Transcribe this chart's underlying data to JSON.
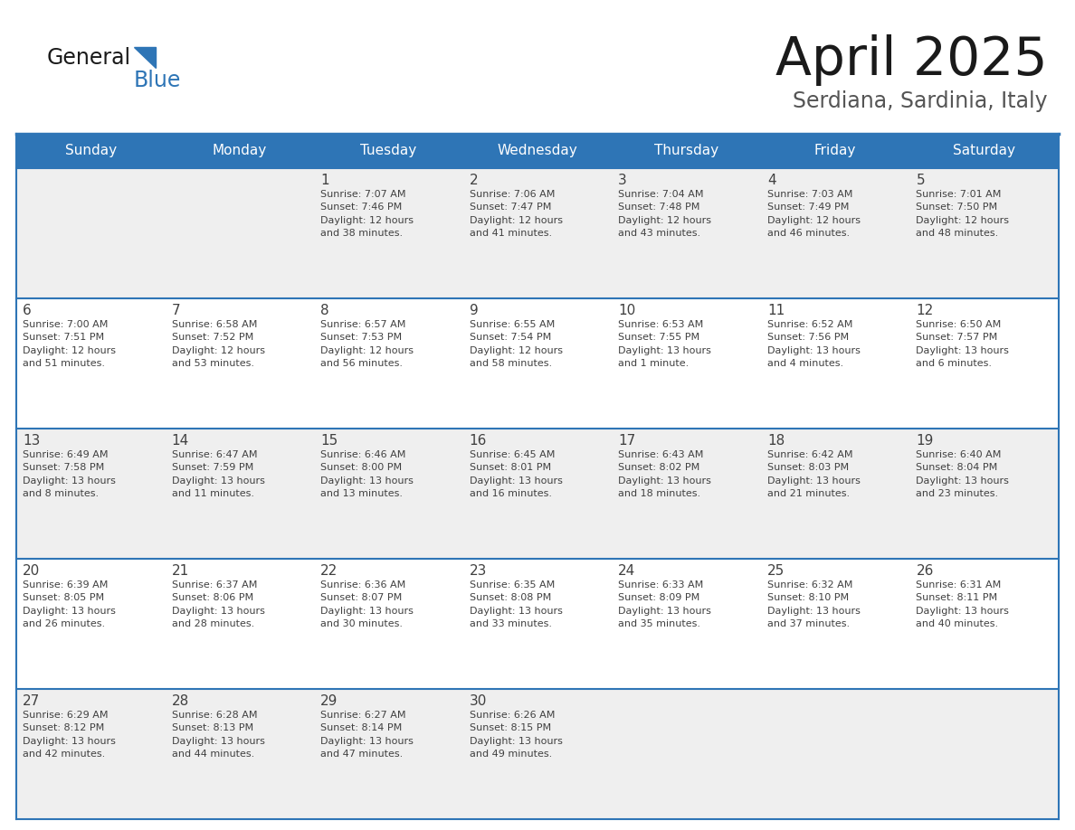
{
  "title": "April 2025",
  "subtitle": "Serdiana, Sardinia, Italy",
  "header_color": "#2E75B6",
  "header_text_color": "#FFFFFF",
  "day_names": [
    "Sunday",
    "Monday",
    "Tuesday",
    "Wednesday",
    "Thursday",
    "Friday",
    "Saturday"
  ],
  "weeks": [
    [
      {
        "day": "",
        "info": ""
      },
      {
        "day": "",
        "info": ""
      },
      {
        "day": "1",
        "info": "Sunrise: 7:07 AM\nSunset: 7:46 PM\nDaylight: 12 hours\nand 38 minutes."
      },
      {
        "day": "2",
        "info": "Sunrise: 7:06 AM\nSunset: 7:47 PM\nDaylight: 12 hours\nand 41 minutes."
      },
      {
        "day": "3",
        "info": "Sunrise: 7:04 AM\nSunset: 7:48 PM\nDaylight: 12 hours\nand 43 minutes."
      },
      {
        "day": "4",
        "info": "Sunrise: 7:03 AM\nSunset: 7:49 PM\nDaylight: 12 hours\nand 46 minutes."
      },
      {
        "day": "5",
        "info": "Sunrise: 7:01 AM\nSunset: 7:50 PM\nDaylight: 12 hours\nand 48 minutes."
      }
    ],
    [
      {
        "day": "6",
        "info": "Sunrise: 7:00 AM\nSunset: 7:51 PM\nDaylight: 12 hours\nand 51 minutes."
      },
      {
        "day": "7",
        "info": "Sunrise: 6:58 AM\nSunset: 7:52 PM\nDaylight: 12 hours\nand 53 minutes."
      },
      {
        "day": "8",
        "info": "Sunrise: 6:57 AM\nSunset: 7:53 PM\nDaylight: 12 hours\nand 56 minutes."
      },
      {
        "day": "9",
        "info": "Sunrise: 6:55 AM\nSunset: 7:54 PM\nDaylight: 12 hours\nand 58 minutes."
      },
      {
        "day": "10",
        "info": "Sunrise: 6:53 AM\nSunset: 7:55 PM\nDaylight: 13 hours\nand 1 minute."
      },
      {
        "day": "11",
        "info": "Sunrise: 6:52 AM\nSunset: 7:56 PM\nDaylight: 13 hours\nand 4 minutes."
      },
      {
        "day": "12",
        "info": "Sunrise: 6:50 AM\nSunset: 7:57 PM\nDaylight: 13 hours\nand 6 minutes."
      }
    ],
    [
      {
        "day": "13",
        "info": "Sunrise: 6:49 AM\nSunset: 7:58 PM\nDaylight: 13 hours\nand 8 minutes."
      },
      {
        "day": "14",
        "info": "Sunrise: 6:47 AM\nSunset: 7:59 PM\nDaylight: 13 hours\nand 11 minutes."
      },
      {
        "day": "15",
        "info": "Sunrise: 6:46 AM\nSunset: 8:00 PM\nDaylight: 13 hours\nand 13 minutes."
      },
      {
        "day": "16",
        "info": "Sunrise: 6:45 AM\nSunset: 8:01 PM\nDaylight: 13 hours\nand 16 minutes."
      },
      {
        "day": "17",
        "info": "Sunrise: 6:43 AM\nSunset: 8:02 PM\nDaylight: 13 hours\nand 18 minutes."
      },
      {
        "day": "18",
        "info": "Sunrise: 6:42 AM\nSunset: 8:03 PM\nDaylight: 13 hours\nand 21 minutes."
      },
      {
        "day": "19",
        "info": "Sunrise: 6:40 AM\nSunset: 8:04 PM\nDaylight: 13 hours\nand 23 minutes."
      }
    ],
    [
      {
        "day": "20",
        "info": "Sunrise: 6:39 AM\nSunset: 8:05 PM\nDaylight: 13 hours\nand 26 minutes."
      },
      {
        "day": "21",
        "info": "Sunrise: 6:37 AM\nSunset: 8:06 PM\nDaylight: 13 hours\nand 28 minutes."
      },
      {
        "day": "22",
        "info": "Sunrise: 6:36 AM\nSunset: 8:07 PM\nDaylight: 13 hours\nand 30 minutes."
      },
      {
        "day": "23",
        "info": "Sunrise: 6:35 AM\nSunset: 8:08 PM\nDaylight: 13 hours\nand 33 minutes."
      },
      {
        "day": "24",
        "info": "Sunrise: 6:33 AM\nSunset: 8:09 PM\nDaylight: 13 hours\nand 35 minutes."
      },
      {
        "day": "25",
        "info": "Sunrise: 6:32 AM\nSunset: 8:10 PM\nDaylight: 13 hours\nand 37 minutes."
      },
      {
        "day": "26",
        "info": "Sunrise: 6:31 AM\nSunset: 8:11 PM\nDaylight: 13 hours\nand 40 minutes."
      }
    ],
    [
      {
        "day": "27",
        "info": "Sunrise: 6:29 AM\nSunset: 8:12 PM\nDaylight: 13 hours\nand 42 minutes."
      },
      {
        "day": "28",
        "info": "Sunrise: 6:28 AM\nSunset: 8:13 PM\nDaylight: 13 hours\nand 44 minutes."
      },
      {
        "day": "29",
        "info": "Sunrise: 6:27 AM\nSunset: 8:14 PM\nDaylight: 13 hours\nand 47 minutes."
      },
      {
        "day": "30",
        "info": "Sunrise: 6:26 AM\nSunset: 8:15 PM\nDaylight: 13 hours\nand 49 minutes."
      },
      {
        "day": "",
        "info": ""
      },
      {
        "day": "",
        "info": ""
      },
      {
        "day": "",
        "info": ""
      }
    ]
  ],
  "cell_bg_even": "#EFEFEF",
  "cell_bg_odd": "#FFFFFF",
  "text_color": "#404040",
  "border_line_color": "#2E75B6",
  "logo_general_color": "#1a1a1a",
  "logo_blue_color": "#2E75B6"
}
